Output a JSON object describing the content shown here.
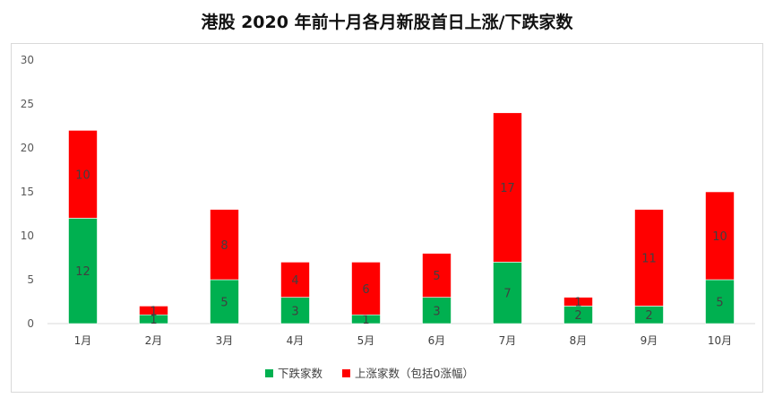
{
  "title": "港股 2020 年前十月各月新股首日上涨/下跌家数",
  "chart_data": {
    "type": "bar",
    "stacked": true,
    "title": "港股 2020 年前十月各月新股首日上涨/下跌家数",
    "categories": [
      "1月",
      "2月",
      "3月",
      "4月",
      "5月",
      "6月",
      "7月",
      "8月",
      "9月",
      "10月"
    ],
    "series": [
      {
        "name": "下跌家数",
        "color": "#00b050",
        "values": [
          12,
          1,
          5,
          3,
          1,
          3,
          7,
          2,
          2,
          5
        ]
      },
      {
        "name": "上涨家数（包括0涨幅）",
        "color": "#ff0000",
        "values": [
          10,
          1,
          8,
          4,
          6,
          5,
          17,
          1,
          11,
          10
        ]
      }
    ],
    "ylim": [
      0,
      30
    ],
    "yticks": [
      0,
      5,
      10,
      15,
      20,
      25,
      30
    ],
    "grid": false,
    "legend_position": "bottom"
  }
}
